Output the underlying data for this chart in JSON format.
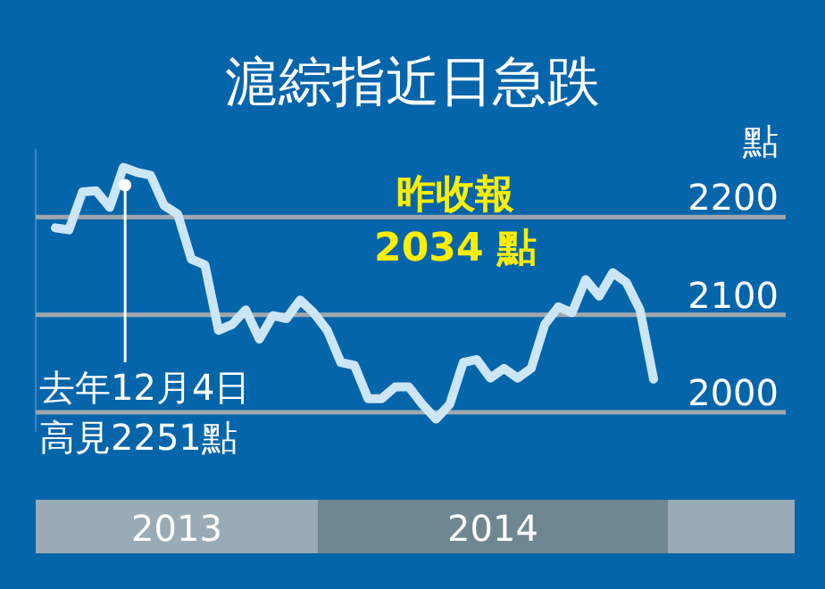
{
  "chart_data": {
    "type": "line",
    "title": "滬綜指近日急跌",
    "ylabel": "點",
    "categories": [
      null,
      null,
      null,
      null,
      null,
      null,
      null,
      null,
      null,
      null,
      null,
      null,
      null,
      null,
      null,
      null,
      null,
      null,
      null,
      null,
      null,
      null,
      null,
      null,
      null,
      null,
      null,
      null,
      null,
      null,
      null,
      null,
      null,
      null,
      null,
      null,
      null,
      null,
      null,
      null,
      null,
      null,
      null,
      null,
      null
    ],
    "series": [
      {
        "color": "#cce6f8",
        "values": [
          2189,
          2187,
          2226,
          2227,
          2210,
          2251,
          2246,
          2243,
          2212,
          2203,
          2157,
          2151,
          2084,
          2090,
          2105,
          2075,
          2099,
          2096,
          2115,
          2102,
          2084,
          2051,
          2048,
          2014,
          2014,
          2026,
          2026,
          2008,
          1993,
          2008,
          2051,
          2054,
          2035,
          2045,
          2035,
          2045,
          2090,
          2108,
          2102,
          2136,
          2119,
          2143,
          2133,
          2105,
          2034
        ]
      }
    ],
    "ylim": [
      1980,
      2270
    ],
    "yticks": [
      2000,
      2100,
      2200
    ],
    "grid": "y",
    "annotations": [
      "去年12月4日",
      "高見2251點",
      "昨收報",
      "2034 點",
      "2013",
      "2014"
    ]
  }
}
